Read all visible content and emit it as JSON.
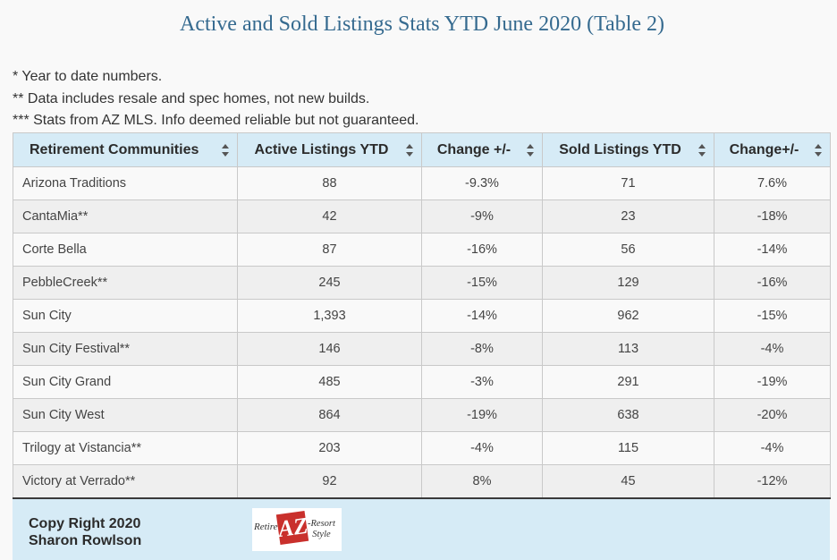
{
  "title": "Active and Sold Listings Stats YTD June 2020 (Table 2)",
  "notes": [
    "* Year to date numbers.",
    "** Data includes resale and spec homes, not new builds.",
    "*** Stats from AZ MLS. Info deemed reliable but not guaranteed."
  ],
  "table": {
    "headers": [
      "Retirement Communities",
      "Active Listings YTD",
      "Change +/-",
      "Sold Listings YTD",
      "Change+/-"
    ],
    "rows": [
      [
        "Arizona Traditions",
        "88",
        "-9.3%",
        "71",
        "7.6%"
      ],
      [
        "CantaMia**",
        "42",
        "-9%",
        "23",
        "-18%"
      ],
      [
        "Corte Bella",
        "87",
        "-16%",
        "56",
        "-14%"
      ],
      [
        "PebbleCreek**",
        "245",
        "-15%",
        "129",
        "-16%"
      ],
      [
        "Sun City",
        "1,393",
        "-14%",
        "962",
        "-15%"
      ],
      [
        "Sun City Festival**",
        "146",
        "-8%",
        "113",
        "-4%"
      ],
      [
        "Sun City Grand",
        "485",
        "-3%",
        "291",
        "-19%"
      ],
      [
        "Sun City West",
        "864",
        "-19%",
        "638",
        "-20%"
      ],
      [
        "Trilogy at Vistancia**",
        "203",
        "-4%",
        "115",
        "-4%"
      ],
      [
        "Victory at Verrado**",
        "92",
        "8%",
        "45",
        "-12%"
      ]
    ]
  },
  "footer": {
    "copyright_line1": "Copy Right 2020",
    "copyright_line2": "Sharon Rowlson",
    "logo": {
      "left_text": "Retire",
      "center_text": "AZ",
      "right_text_1": "-Resort",
      "right_text_2": "Style"
    }
  },
  "colors": {
    "title": "#356a8f",
    "header_bg": "#d6ebf6",
    "row_alt": "#efefef",
    "logo_red": "#c9302c"
  },
  "icons": {
    "sort": "sort-icon"
  }
}
